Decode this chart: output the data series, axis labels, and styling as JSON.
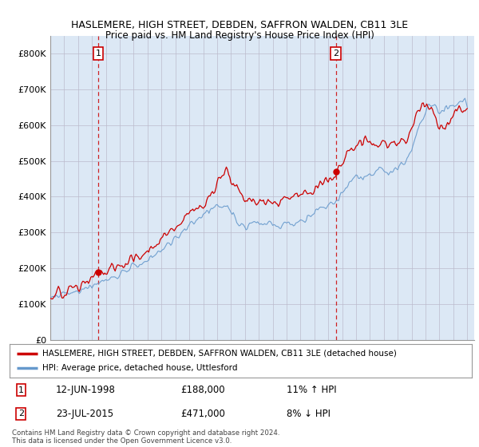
{
  "title1": "HASLEMERE, HIGH STREET, DEBDEN, SAFFRON WALDEN, CB11 3LE",
  "title2": "Price paid vs. HM Land Registry's House Price Index (HPI)",
  "legend_label1": "HASLEMERE, HIGH STREET, DEBDEN, SAFFRON WALDEN, CB11 3LE (detached house)",
  "legend_label2": "HPI: Average price, detached house, Uttlesford",
  "annotation1_label": "1",
  "annotation1_date": "12-JUN-1998",
  "annotation1_price": "£188,000",
  "annotation1_hpi": "11% ↑ HPI",
  "annotation2_label": "2",
  "annotation2_date": "23-JUL-2015",
  "annotation2_price": "£471,000",
  "annotation2_hpi": "8% ↓ HPI",
  "footer": "Contains HM Land Registry data © Crown copyright and database right 2024.\nThis data is licensed under the Open Government Licence v3.0.",
  "sale1_year": 1998.45,
  "sale1_value": 188000,
  "sale2_year": 2015.55,
  "sale2_value": 471000,
  "line1_color": "#cc0000",
  "line2_color": "#6699cc",
  "background_color": "#dce8f5",
  "vline_color": "#cc0000",
  "grid_color": "#bbbbcc",
  "ylim": [
    0,
    850000
  ],
  "xlim_start": 1995,
  "xlim_end": 2025.5,
  "yticks": [
    0,
    100000,
    200000,
    300000,
    400000,
    500000,
    600000,
    700000,
    800000
  ],
  "ytick_labels": [
    "£0",
    "£100K",
    "£200K",
    "£300K",
    "£400K",
    "£500K",
    "£600K",
    "£700K",
    "£800K"
  ],
  "xticks": [
    1995,
    1996,
    1997,
    1998,
    1999,
    2000,
    2001,
    2002,
    2003,
    2004,
    2005,
    2006,
    2007,
    2008,
    2009,
    2010,
    2011,
    2012,
    2013,
    2014,
    2015,
    2016,
    2017,
    2018,
    2019,
    2020,
    2021,
    2022,
    2023,
    2024,
    2025
  ]
}
